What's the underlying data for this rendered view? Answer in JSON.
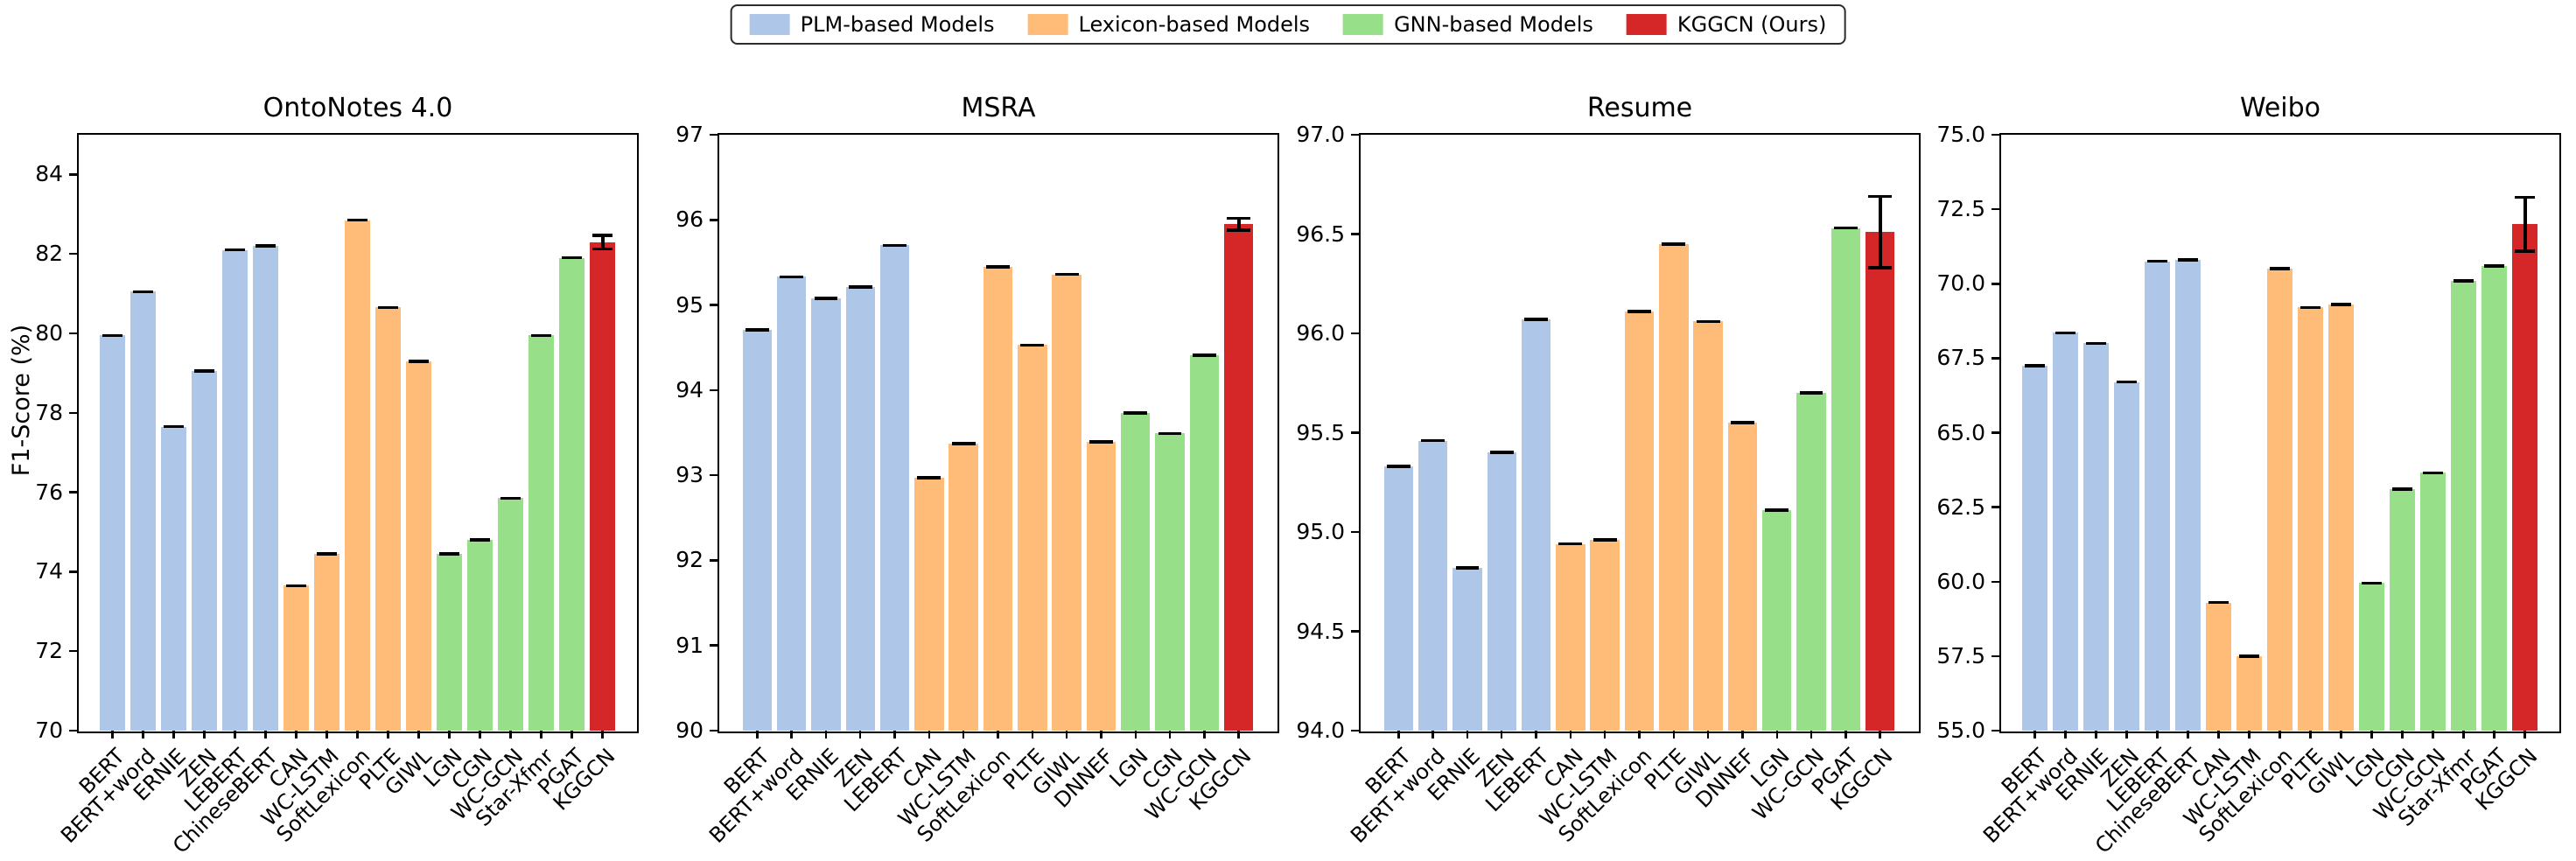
{
  "figure": {
    "ylabel": "F1-Score (%)"
  },
  "legend": {
    "items": [
      {
        "label": "PLM-based Models",
        "color": "#aec7e8"
      },
      {
        "label": "Lexicon-based Models",
        "color": "#ffbb78"
      },
      {
        "label": "GNN-based Models",
        "color": "#98df8a"
      },
      {
        "label": "KGGCN (Ours)",
        "color": "#d62728"
      }
    ]
  },
  "chart_data": [
    {
      "type": "bar",
      "title": "OntoNotes 4.0",
      "ylabel": "F1-Score (%)",
      "grid": false,
      "ylim": [
        70,
        85
      ],
      "yticks": [
        70,
        72,
        74,
        76,
        78,
        80,
        82,
        84
      ],
      "ytick_labels": [
        "70",
        "72",
        "74",
        "76",
        "78",
        "80",
        "82",
        "84"
      ],
      "categories": [
        "BERT",
        "BERT+word",
        "ERNIE",
        "ZEN",
        "LEBERT",
        "ChineseBERT",
        "CAN",
        "WC-LSTM",
        "SoftLexicon",
        "PLTE",
        "GIWL",
        "LGN",
        "CGN",
        "WC-GCN",
        "Star-Xfmr",
        "PGAT",
        "KGGCN"
      ],
      "values": [
        79.95,
        81.05,
        77.65,
        79.05,
        82.1,
        82.2,
        73.65,
        74.45,
        82.85,
        80.65,
        79.3,
        74.45,
        74.8,
        75.85,
        79.95,
        81.9,
        82.3
      ],
      "bar_groups": [
        0,
        0,
        0,
        0,
        0,
        0,
        1,
        1,
        1,
        1,
        1,
        2,
        2,
        2,
        2,
        2,
        3
      ],
      "errors": [
        0,
        0,
        0,
        0,
        0,
        0,
        0,
        0,
        0,
        0,
        0,
        0,
        0,
        0,
        0,
        0,
        0.17
      ]
    },
    {
      "type": "bar",
      "title": "MSRA",
      "grid": false,
      "ylim": [
        90,
        97
      ],
      "yticks": [
        90,
        91,
        92,
        93,
        94,
        95,
        96,
        97
      ],
      "ytick_labels": [
        "90",
        "91",
        "92",
        "93",
        "94",
        "95",
        "96",
        "97"
      ],
      "categories": [
        "BERT",
        "BERT+word",
        "ERNIE",
        "ZEN",
        "LEBERT",
        "CAN",
        "WC-LSTM",
        "SoftLexicon",
        "PLTE",
        "GIWL",
        "DNNEF",
        "LGN",
        "CGN",
        "WC-GCN",
        "KGGCN"
      ],
      "values": [
        94.71,
        95.33,
        95.08,
        95.21,
        95.7,
        92.97,
        93.37,
        95.45,
        94.53,
        95.36,
        93.39,
        93.73,
        93.49,
        94.41,
        95.95
      ],
      "bar_groups": [
        0,
        0,
        0,
        0,
        0,
        1,
        1,
        1,
        1,
        1,
        1,
        2,
        2,
        2,
        3
      ],
      "errors": [
        0,
        0,
        0,
        0,
        0,
        0,
        0,
        0,
        0,
        0,
        0,
        0,
        0,
        0,
        0.07
      ]
    },
    {
      "type": "bar",
      "title": "Resume",
      "grid": false,
      "ylim": [
        94,
        97
      ],
      "yticks": [
        94,
        94.5,
        95,
        95.5,
        96,
        96.5,
        97
      ],
      "ytick_labels": [
        "94.0",
        "94.5",
        "95.0",
        "95.5",
        "96.0",
        "96.5",
        "97.0"
      ],
      "categories": [
        "BERT",
        "BERT+word",
        "ERNIE",
        "ZEN",
        "LEBERT",
        "CAN",
        "WC-LSTM",
        "SoftLexicon",
        "PLTE",
        "GIWL",
        "DNNEF",
        "LGN",
        "WC-GCN",
        "PGAT",
        "KGGCN"
      ],
      "values": [
        95.33,
        95.46,
        94.82,
        95.4,
        96.07,
        94.94,
        94.96,
        96.11,
        96.45,
        96.06,
        95.55,
        95.11,
        95.7,
        96.53,
        96.51
      ],
      "bar_groups": [
        0,
        0,
        0,
        0,
        0,
        1,
        1,
        1,
        1,
        1,
        1,
        2,
        2,
        2,
        3
      ],
      "errors": [
        0,
        0,
        0,
        0,
        0,
        0,
        0,
        0,
        0,
        0,
        0,
        0,
        0,
        0,
        0.18
      ]
    },
    {
      "type": "bar",
      "title": "Weibo",
      "grid": false,
      "ylim": [
        55,
        75
      ],
      "yticks": [
        55,
        57.5,
        60,
        62.5,
        65,
        67.5,
        70,
        72.5,
        75
      ],
      "ytick_labels": [
        "55.0",
        "57.5",
        "60.0",
        "62.5",
        "65.0",
        "67.5",
        "70.0",
        "72.5",
        "75.0"
      ],
      "categories": [
        "BERT",
        "BERT+word",
        "ERNIE",
        "ZEN",
        "LEBERT",
        "ChineseBERT",
        "CAN",
        "WC-LSTM",
        "SoftLexicon",
        "PLTE",
        "GIWL",
        "LGN",
        "CGN",
        "WC-GCN",
        "Star-Xfmr",
        "PGAT",
        "KGGCN"
      ],
      "values": [
        67.25,
        68.35,
        68.0,
        66.7,
        70.75,
        70.8,
        59.3,
        57.5,
        70.5,
        69.2,
        69.3,
        59.95,
        63.1,
        63.65,
        70.1,
        70.6,
        72.0
      ],
      "bar_groups": [
        0,
        0,
        0,
        0,
        0,
        0,
        1,
        1,
        1,
        1,
        1,
        2,
        2,
        2,
        2,
        2,
        3
      ],
      "errors": [
        0,
        0,
        0,
        0,
        0,
        0,
        0,
        0,
        0,
        0,
        0,
        0,
        0,
        0,
        0,
        0,
        0.9
      ]
    }
  ]
}
